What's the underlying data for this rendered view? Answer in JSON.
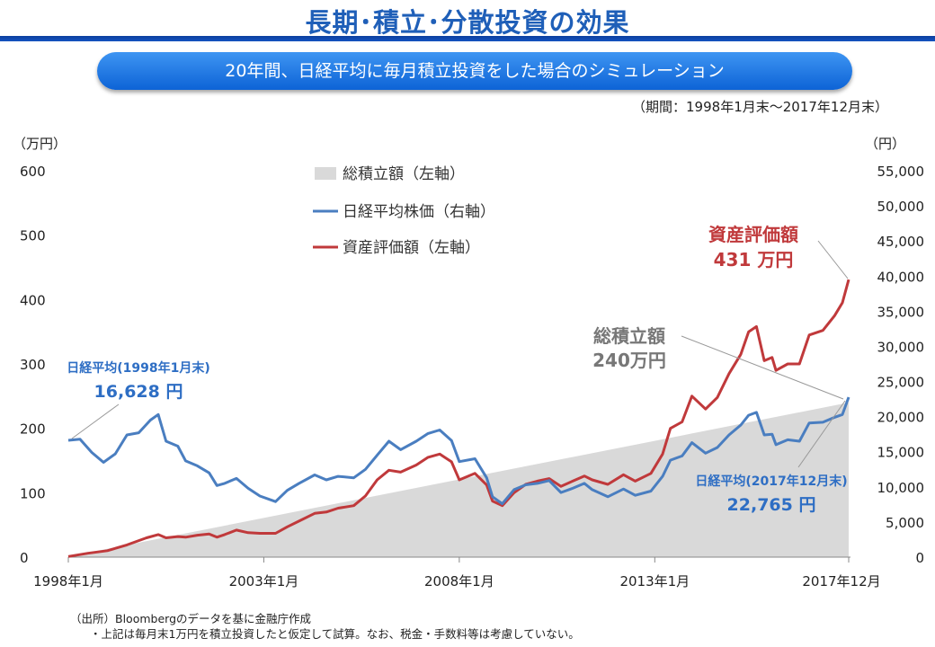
{
  "page": {
    "title": "長期･積立･分散投資の効果",
    "subtitle": "20年間、日経平均に毎月積立投資をした場合のシミュレーション",
    "period": "（期間：1998年1月末～2017年12月末）",
    "source_line": "（出所）Bloombergのデータを基に金融庁作成",
    "note_line": "・上記は毎月末1万円を積立投資したと仮定して試算。なお、税金・手数料等は考慮していない。"
  },
  "colors": {
    "title": "#1f5fb8",
    "pill": "#1565d8",
    "accumulated_fill": "#d9d9d9",
    "nikkei_line": "#4a7ec0",
    "asset_line": "#c0393b"
  },
  "chart_data": {
    "type": "line",
    "left_axis": {
      "unit_label": "（万円）",
      "ylim": [
        0,
        600
      ],
      "ticks": [
        "0",
        "100",
        "200",
        "300",
        "400",
        "500",
        "600"
      ]
    },
    "right_axis": {
      "unit_label": "（円）",
      "ylim": [
        0,
        55000
      ],
      "ticks": [
        "0",
        "5,000",
        "10,000",
        "15,000",
        "20,000",
        "25,000",
        "30,000",
        "35,000",
        "40,000",
        "45,000",
        "50,000",
        "55,000"
      ]
    },
    "x_ticks": [
      "1998年1月",
      "2003年1月",
      "2008年1月",
      "2013年1月",
      "2017年12月"
    ],
    "grid": false,
    "legend_position": "top-left",
    "legend": [
      {
        "label": "総積立額（左軸）",
        "kind": "area"
      },
      {
        "label": "日経平均株価（右軸）",
        "kind": "line"
      },
      {
        "label": "資産評価額（左軸）",
        "kind": "line"
      }
    ],
    "series": [
      {
        "name": "総積立額（左軸）",
        "axis": "left",
        "unit": "万円",
        "values": [
          [
            1998.0,
            1
          ],
          [
            2017.96,
            240
          ]
        ]
      },
      {
        "name": "日経平均株価（右軸）",
        "axis": "right",
        "unit": "円",
        "values": [
          [
            1998.0,
            16628
          ],
          [
            1998.3,
            16800
          ],
          [
            1998.6,
            14900
          ],
          [
            1998.9,
            13500
          ],
          [
            1999.2,
            14700
          ],
          [
            1999.5,
            17400
          ],
          [
            1999.8,
            17700
          ],
          [
            2000.1,
            19500
          ],
          [
            2000.3,
            20300
          ],
          [
            2000.5,
            16500
          ],
          [
            2000.8,
            15800
          ],
          [
            2001.0,
            13700
          ],
          [
            2001.3,
            13000
          ],
          [
            2001.6,
            12000
          ],
          [
            2001.8,
            10200
          ],
          [
            2002.0,
            10500
          ],
          [
            2002.3,
            11200
          ],
          [
            2002.6,
            9800
          ],
          [
            2002.9,
            8700
          ],
          [
            2003.3,
            7900
          ],
          [
            2003.6,
            9500
          ],
          [
            2003.9,
            10500
          ],
          [
            2004.3,
            11700
          ],
          [
            2004.6,
            11000
          ],
          [
            2004.9,
            11500
          ],
          [
            2005.3,
            11300
          ],
          [
            2005.6,
            12500
          ],
          [
            2005.9,
            14500
          ],
          [
            2006.2,
            16500
          ],
          [
            2006.5,
            15300
          ],
          [
            2006.9,
            16500
          ],
          [
            2007.2,
            17600
          ],
          [
            2007.5,
            18100
          ],
          [
            2007.8,
            16600
          ],
          [
            2008.0,
            13600
          ],
          [
            2008.4,
            14000
          ],
          [
            2008.7,
            11300
          ],
          [
            2008.85,
            8600
          ],
          [
            2009.1,
            7600
          ],
          [
            2009.4,
            9600
          ],
          [
            2009.7,
            10300
          ],
          [
            2010.0,
            10500
          ],
          [
            2010.3,
            10900
          ],
          [
            2010.6,
            9200
          ],
          [
            2010.9,
            9800
          ],
          [
            2011.2,
            10500
          ],
          [
            2011.4,
            9600
          ],
          [
            2011.8,
            8600
          ],
          [
            2012.2,
            9700
          ],
          [
            2012.5,
            8800
          ],
          [
            2012.9,
            9400
          ],
          [
            2013.2,
            11500
          ],
          [
            2013.4,
            13800
          ],
          [
            2013.7,
            14400
          ],
          [
            2013.95,
            16300
          ],
          [
            2014.3,
            14800
          ],
          [
            2014.6,
            15600
          ],
          [
            2014.9,
            17400
          ],
          [
            2015.2,
            18800
          ],
          [
            2015.4,
            20200
          ],
          [
            2015.6,
            20600
          ],
          [
            2015.8,
            17400
          ],
          [
            2016.0,
            17500
          ],
          [
            2016.1,
            16000
          ],
          [
            2016.4,
            16700
          ],
          [
            2016.7,
            16500
          ],
          [
            2016.95,
            19100
          ],
          [
            2017.3,
            19200
          ],
          [
            2017.6,
            19900
          ],
          [
            2017.8,
            20300
          ],
          [
            2017.96,
            22765
          ]
        ]
      },
      {
        "name": "資産評価額（左軸）",
        "axis": "left",
        "unit": "万円",
        "values": [
          [
            1998.0,
            1
          ],
          [
            1998.5,
            6
          ],
          [
            1999.0,
            10
          ],
          [
            1999.5,
            19
          ],
          [
            2000.0,
            30
          ],
          [
            2000.3,
            35
          ],
          [
            2000.5,
            30
          ],
          [
            2000.8,
            32
          ],
          [
            2001.0,
            31
          ],
          [
            2001.3,
            34
          ],
          [
            2001.6,
            36
          ],
          [
            2001.8,
            31
          ],
          [
            2002.0,
            35
          ],
          [
            2002.3,
            42
          ],
          [
            2002.6,
            38
          ],
          [
            2002.9,
            37
          ],
          [
            2003.3,
            37
          ],
          [
            2003.6,
            47
          ],
          [
            2003.9,
            56
          ],
          [
            2004.3,
            68
          ],
          [
            2004.6,
            70
          ],
          [
            2004.9,
            76
          ],
          [
            2005.3,
            80
          ],
          [
            2005.6,
            95
          ],
          [
            2005.9,
            120
          ],
          [
            2006.2,
            135
          ],
          [
            2006.5,
            132
          ],
          [
            2006.9,
            143
          ],
          [
            2007.2,
            155
          ],
          [
            2007.5,
            160
          ],
          [
            2007.8,
            148
          ],
          [
            2008.0,
            120
          ],
          [
            2008.4,
            130
          ],
          [
            2008.7,
            112
          ],
          [
            2008.85,
            87
          ],
          [
            2009.1,
            80
          ],
          [
            2009.4,
            100
          ],
          [
            2009.7,
            113
          ],
          [
            2010.0,
            118
          ],
          [
            2010.3,
            122
          ],
          [
            2010.6,
            110
          ],
          [
            2010.9,
            118
          ],
          [
            2011.2,
            126
          ],
          [
            2011.4,
            120
          ],
          [
            2011.8,
            113
          ],
          [
            2012.2,
            128
          ],
          [
            2012.5,
            118
          ],
          [
            2012.9,
            130
          ],
          [
            2013.2,
            160
          ],
          [
            2013.4,
            200
          ],
          [
            2013.7,
            210
          ],
          [
            2013.95,
            250
          ],
          [
            2014.3,
            230
          ],
          [
            2014.6,
            248
          ],
          [
            2014.9,
            285
          ],
          [
            2015.2,
            315
          ],
          [
            2015.4,
            350
          ],
          [
            2015.6,
            358
          ],
          [
            2015.8,
            305
          ],
          [
            2016.0,
            310
          ],
          [
            2016.1,
            290
          ],
          [
            2016.4,
            300
          ],
          [
            2016.7,
            300
          ],
          [
            2016.95,
            345
          ],
          [
            2017.3,
            352
          ],
          [
            2017.6,
            375
          ],
          [
            2017.8,
            395
          ],
          [
            2017.96,
            431
          ]
        ]
      }
    ],
    "annotations": {
      "asset_label": "資産評価額",
      "asset_value": "431 万円",
      "accum_label": "総積立額",
      "accum_value": "240万円",
      "nikkei_start_label": "日経平均(1998年1月末)",
      "nikkei_start_value": "16,628 円",
      "nikkei_end_label": "日経平均(2017年12月末)",
      "nikkei_end_value": "22,765 円"
    }
  }
}
